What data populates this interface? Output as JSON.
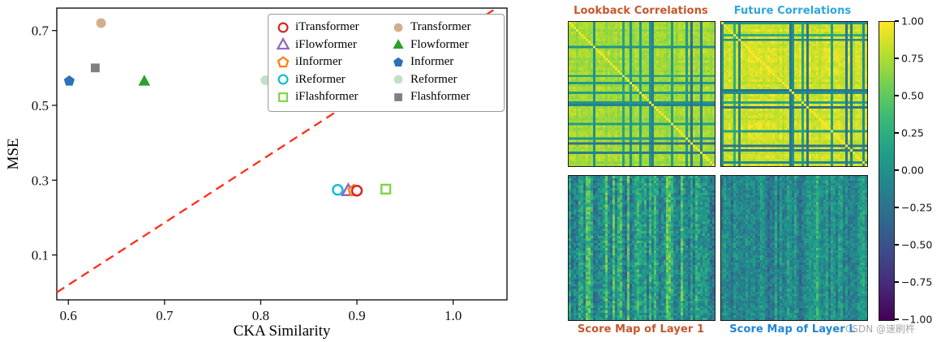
{
  "watermark": "CSDN @速刷杵",
  "chart_data": [
    {
      "type": "scatter",
      "xlabel": "CKA Similarity",
      "ylabel": "MSE",
      "xlim": [
        0.588,
        1.056
      ],
      "ylim": [
        -0.02,
        0.76
      ],
      "xticks": [
        "0.6",
        "0.7",
        "0.8",
        "0.9",
        "1.0"
      ],
      "xtick_values": [
        0.6,
        0.7,
        0.8,
        0.9,
        1.0
      ],
      "yticks": [
        "0.1",
        "0.3",
        "0.5",
        "0.7"
      ],
      "ytick_values": [
        0.1,
        0.3,
        0.5,
        0.7
      ],
      "grid": false,
      "diagonal": {
        "from": [
          0.588,
          0.0
        ],
        "to": [
          1.045,
          0.76
        ],
        "color": "#ff2d1a",
        "style": "dashed",
        "width": 2.3
      },
      "series": [
        {
          "name": "Transformer",
          "marker": "circle",
          "fill": "solid",
          "color": "#d3b08c",
          "x": 0.634,
          "y": 0.72
        },
        {
          "name": "Flowformer",
          "marker": "triangle",
          "fill": "solid",
          "color": "#2ca02c",
          "x": 0.679,
          "y": 0.565
        },
        {
          "name": "Informer",
          "marker": "pentagon",
          "fill": "solid",
          "color": "#2a72b5",
          "x": 0.601,
          "y": 0.565
        },
        {
          "name": "Reformer",
          "marker": "circle",
          "fill": "solid",
          "color": "#c5dfc6",
          "x": 0.805,
          "y": 0.567
        },
        {
          "name": "Flashformer",
          "marker": "square",
          "fill": "solid",
          "color": "#7f7f7f",
          "x": 0.628,
          "y": 0.6
        },
        {
          "name": "iReformer",
          "marker": "circle",
          "fill": "open",
          "color": "#17becf",
          "x": 0.88,
          "y": 0.274
        },
        {
          "name": "iFlowformer",
          "marker": "triangle",
          "fill": "open",
          "color": "#9467bd",
          "x": 0.891,
          "y": 0.272
        },
        {
          "name": "iInformer",
          "marker": "pentagon",
          "fill": "open",
          "color": "#ff7f0e",
          "x": 0.897,
          "y": 0.272
        },
        {
          "name": "iTransformer",
          "marker": "circle",
          "fill": "open",
          "color": "#d62728",
          "x": 0.9,
          "y": 0.272
        },
        {
          "name": "iFlashformer",
          "marker": "square",
          "fill": "open",
          "color": "#84d44b",
          "x": 0.93,
          "y": 0.276
        }
      ],
      "legend_columns": [
        [
          "iTransformer",
          "iFlowformer",
          "iInformer",
          "iReformer",
          "iFlashformer"
        ],
        [
          "Transformer",
          "Flowformer",
          "Informer",
          "Reformer",
          "Flashformer"
        ]
      ],
      "legend_position": "upper center-right"
    },
    {
      "type": "heatmap",
      "title": "Lookback Correlations",
      "title_color": "#c9562b",
      "colormap": "viridis",
      "pattern": "correlation",
      "seed": 11,
      "base": 0.86,
      "line_prob": 0.16
    },
    {
      "type": "heatmap",
      "title": "Future Correlations",
      "title_color": "#2aa7e0",
      "colormap": "viridis",
      "pattern": "correlation",
      "seed": 23,
      "base": 0.93,
      "line_prob": 0.1
    },
    {
      "type": "heatmap",
      "title": "Score Map of Layer 1",
      "title_color": "#c9562b",
      "colormap": "viridis",
      "pattern": "score",
      "seed": 37,
      "base": 0.55,
      "stripe": 0.17,
      "noise": 0.13
    },
    {
      "type": "heatmap",
      "title": "Score Map of Layer L",
      "title_color": "#1f86d6",
      "colormap": "viridis",
      "pattern": "score",
      "seed": 49,
      "base": 0.47,
      "stripe": 0.11,
      "noise": 0.1
    },
    {
      "type": "colorbar",
      "colormap": "viridis",
      "vmin": -1.0,
      "vmax": 1.0,
      "ticks": [
        "1.00",
        "0.75",
        "0.50",
        "0.25",
        "0.00",
        "−0.25",
        "−0.50",
        "−0.75",
        "−1.00"
      ]
    }
  ]
}
